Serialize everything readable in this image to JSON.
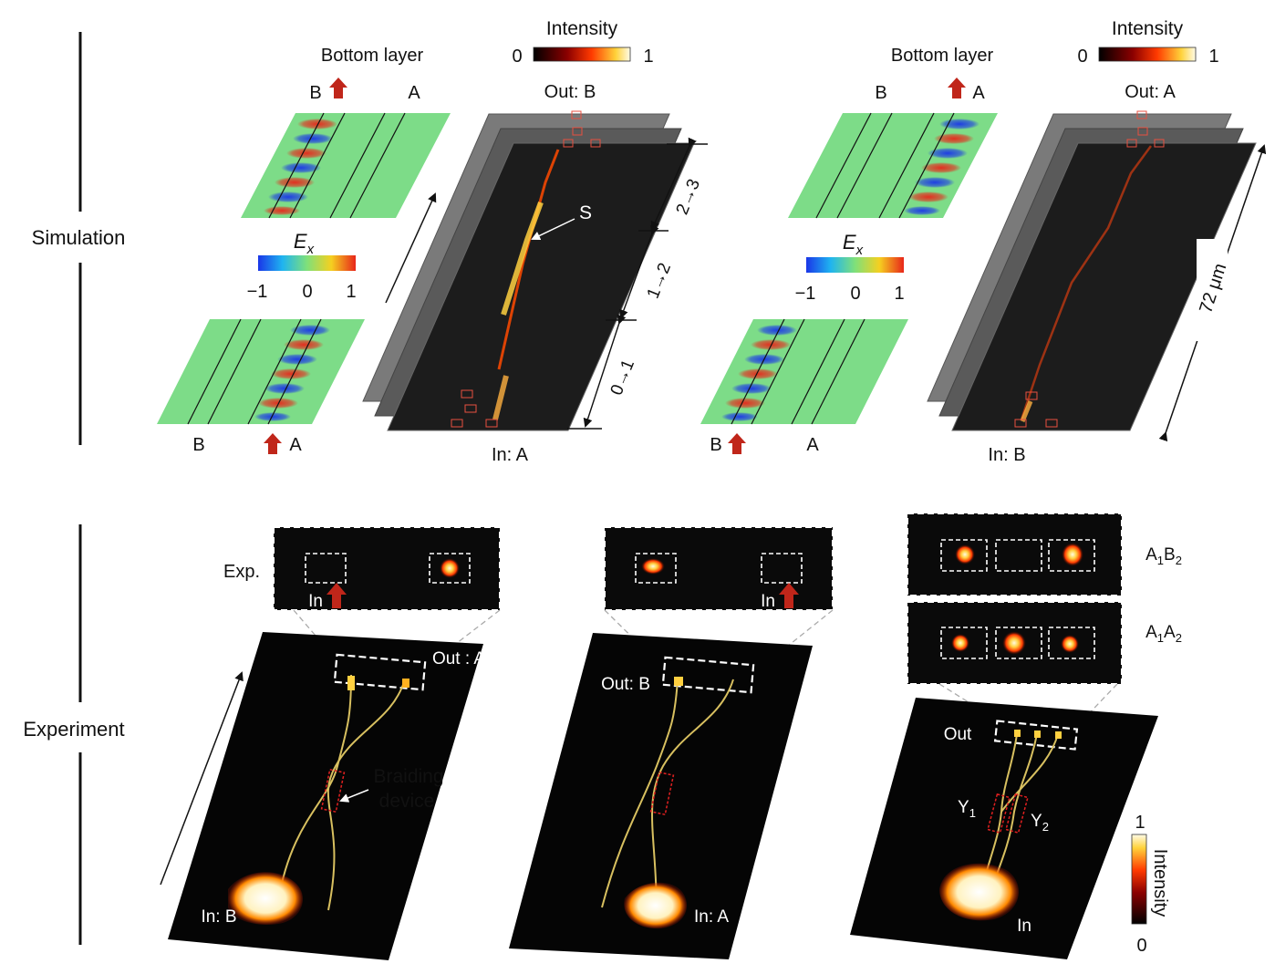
{
  "row_labels": {
    "simulation": "Simulation",
    "experiment": "Experiment"
  },
  "simulation": {
    "left": {
      "bottom_layer": "Bottom layer",
      "top_B": "B",
      "top_A": "A",
      "bot_B": "B",
      "bot_A": "A",
      "out": "Out: B",
      "in": "In: A",
      "s_label": "S",
      "seg_01": "0→1",
      "seg_12": "1→2",
      "seg_23": "2→3"
    },
    "right": {
      "bottom_layer": "Bottom layer",
      "top_B": "B",
      "top_A": "A",
      "bot_B": "B",
      "bot_A": "A",
      "out": "Out: A",
      "in": "In: B",
      "length": "72 μm"
    },
    "intensity_bar": {
      "title": "Intensity",
      "min": "0",
      "max": "1"
    },
    "ex_bar": {
      "title_main": "E",
      "title_sub": "x",
      "ticks": [
        "−1",
        "0",
        "1"
      ]
    }
  },
  "experiment": {
    "panel1": {
      "exp": "Exp.",
      "in_arrow": "In",
      "out": "Out : A",
      "in": "In: B",
      "braid_1": "Braiding",
      "braid_2": "device"
    },
    "panel2": {
      "in_arrow": "In",
      "out": "Out: B",
      "in": "In: A"
    },
    "panel3": {
      "label_a1b2": {
        "main1": "A",
        "sub1": "1",
        "main2": "B",
        "sub2": "2"
      },
      "label_a1a2": {
        "main1": "A",
        "sub1": "1",
        "main2": "A",
        "sub2": "2"
      },
      "out": "Out",
      "in": "In",
      "y1": {
        "main": "Y",
        "sub": "1"
      },
      "y2": {
        "main": "Y",
        "sub": "2"
      }
    },
    "intensity_bar": {
      "title": "Intensity",
      "max": "1",
      "min": "0"
    }
  }
}
